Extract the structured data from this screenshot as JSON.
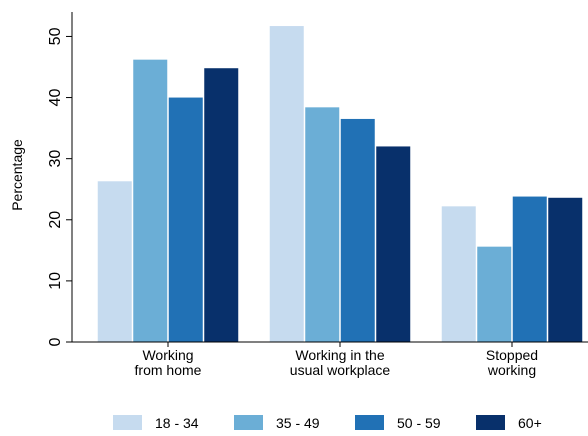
{
  "chart_data": {
    "type": "bar",
    "title": "",
    "xlabel": "",
    "ylabel": "Percentage",
    "ylim": [
      0,
      54
    ],
    "yticks": [
      0,
      10,
      20,
      30,
      40,
      50
    ],
    "categories": [
      [
        "Working",
        "from home"
      ],
      [
        "Working in the",
        "usual workplace"
      ],
      [
        "Stopped",
        "working"
      ]
    ],
    "series": [
      {
        "name": "18 - 34",
        "color": "#c6dbef",
        "values": [
          26.3,
          51.7,
          22.2
        ]
      },
      {
        "name": "35 - 49",
        "color": "#6baed6",
        "values": [
          46.2,
          38.4,
          15.6
        ]
      },
      {
        "name": "50 - 59",
        "color": "#2171b5",
        "values": [
          40.0,
          36.5,
          23.8
        ]
      },
      {
        "name": "60+",
        "color": "#08306b",
        "values": [
          44.8,
          32.0,
          23.6
        ]
      }
    ],
    "legend_position": "bottom",
    "grid": false
  }
}
